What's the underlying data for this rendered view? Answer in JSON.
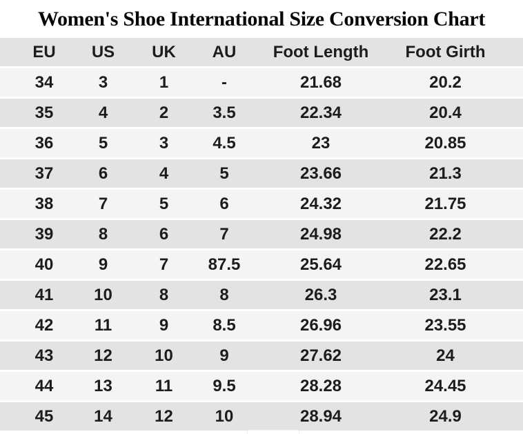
{
  "title": "Women's Shoe International Size Conversion Chart",
  "chart_data": {
    "type": "table",
    "title": "Women's Shoe International Size Conversion Chart",
    "columns": [
      "EU",
      "US",
      "UK",
      "AU",
      "Foot Length",
      "Foot Girth"
    ],
    "rows": [
      [
        "34",
        "3",
        "1",
        "-",
        "21.68",
        "20.2"
      ],
      [
        "35",
        "4",
        "2",
        "3.5",
        "22.34",
        "20.4"
      ],
      [
        "36",
        "5",
        "3",
        "4.5",
        "23",
        "20.85"
      ],
      [
        "37",
        "6",
        "4",
        "5",
        "23.66",
        "21.3"
      ],
      [
        "38",
        "7",
        "5",
        "6",
        "24.32",
        "21.75"
      ],
      [
        "39",
        "8",
        "6",
        "7",
        "24.98",
        "22.2"
      ],
      [
        "40",
        "9",
        "7",
        "87.5",
        "25.64",
        "22.65"
      ],
      [
        "41",
        "10",
        "8",
        "8",
        "26.3",
        "23.1"
      ],
      [
        "42",
        "11",
        "9",
        "8.5",
        "26.96",
        "23.55"
      ],
      [
        "43",
        "12",
        "10",
        "9",
        "27.62",
        "24"
      ],
      [
        "44",
        "13",
        "11",
        "9.5",
        "28.28",
        "24.45"
      ],
      [
        "45",
        "14",
        "12",
        "10",
        "28.94",
        "24.9"
      ]
    ],
    "row_stripe_pattern": "light/gray alternating, header gray",
    "legend_position": "none",
    "grid": "off"
  },
  "colors": {
    "background": "#ffffff",
    "header_row_bg": "#e3e3e3",
    "row_gray_bg": "#e3e3e3",
    "row_light_bg": "#f4f4f4",
    "row_gap": "#ffffff",
    "text": "#1c1c1c",
    "title_text": "#070707"
  }
}
